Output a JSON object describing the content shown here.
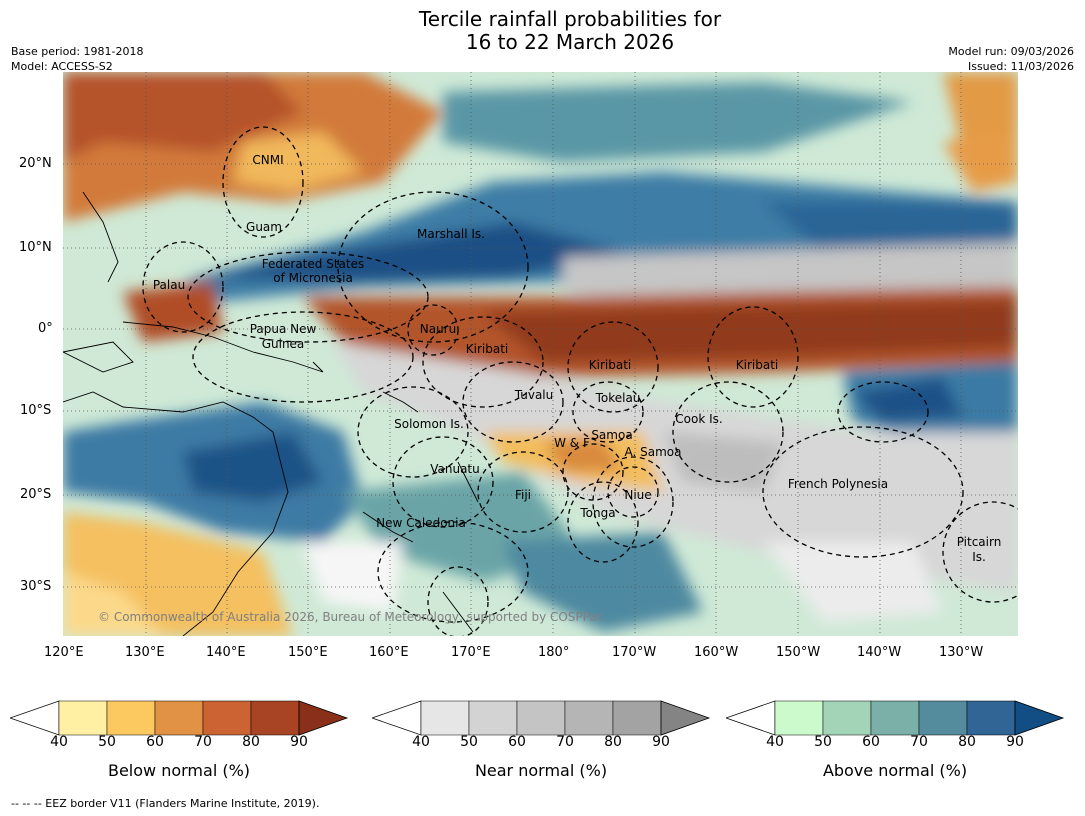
{
  "title": {
    "line1": "Tercile rainfall probabilities for",
    "line2": "16 to 22 March 2026"
  },
  "meta": {
    "base_period": "Base period: 1981-2018",
    "model": "Model: ACCESS-S2",
    "model_run": "Model run: 09/03/2026",
    "issued": "Issued: 11/03/2026"
  },
  "map": {
    "lat_ticks": [
      "20°N",
      "10°N",
      "0°",
      "10°S",
      "20°S",
      "30°S"
    ],
    "lon_ticks": [
      "120°E",
      "130°E",
      "140°E",
      "150°E",
      "160°E",
      "170°E",
      "180°",
      "170°W",
      "160°W",
      "150°W",
      "140°W",
      "130°W"
    ],
    "places": {
      "cnmi": "CNMI",
      "guam": "Guam",
      "marshall": "Marshall Is.",
      "fsm1": "Federated States",
      "fsm2": "of Micronesia",
      "palau": "Palau",
      "png1": "Papua New",
      "png2": "Guinea",
      "nauru": "Nauru",
      "kiribati_w": "Kiribati",
      "kiribati_c": "Kiribati",
      "kiribati_e": "Kiribati",
      "tuvalu": "Tuvalu",
      "tokelau": "Tokelau",
      "cook": "Cook Is.",
      "solomon": "Solomon Is.",
      "samoa": "Samoa",
      "wf": "W & F",
      "asamoa": "A. Samoa",
      "vanuatu": "Vanuatu",
      "fiji": "Fiji",
      "niue": "Niue",
      "tonga": "Tonga",
      "frpoly": "French Polynesia",
      "newcal": "New Caledonia",
      "pitcairn1": "Pitcairn",
      "pitcairn2": "Is."
    },
    "copyright": "© Commonwealth of Australia 2026, Bureau of Meteorology, supported by COSPPac"
  },
  "colorbars": [
    {
      "label": "Below normal (%)",
      "ticks": [
        "40",
        "50",
        "60",
        "70",
        "80",
        "90"
      ],
      "colors": [
        "#fff0a3",
        "#fcc961",
        "#e29244",
        "#cb6332",
        "#a84423",
        "#8a301a"
      ]
    },
    {
      "label": "Near normal (%)",
      "ticks": [
        "40",
        "50",
        "60",
        "70",
        "80",
        "90"
      ],
      "colors": [
        "#e6e6e6",
        "#d3d3d3",
        "#c4c4c4",
        "#b5b5b5",
        "#a3a3a3",
        "#848484"
      ]
    },
    {
      "label": "Above normal (%)",
      "ticks": [
        "40",
        "50",
        "60",
        "70",
        "80",
        "90"
      ],
      "colors": [
        "#ccfacc",
        "#a3d4b8",
        "#7ab0a8",
        "#548c9e",
        "#316595",
        "#124d84"
      ]
    }
  ],
  "footer": "--  --  -- EEZ border V11 (Flanders Marine Institute, 2019)."
}
